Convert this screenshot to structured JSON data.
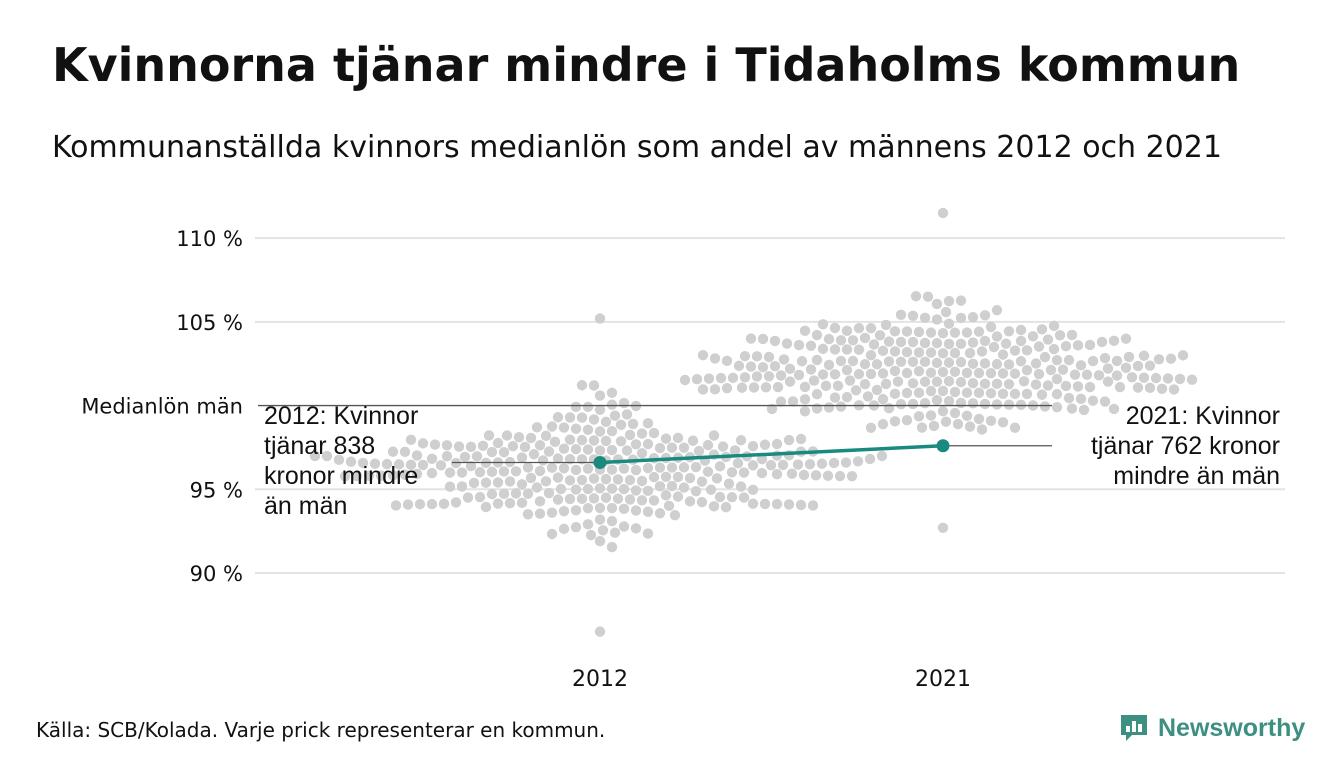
{
  "title": "Kvinnorna tjänar mindre i Tidaholms kommun",
  "subtitle": "Kommunanställda kvinnors medianlön som andel av männens 2012 och 2021",
  "source": "Källa: SCB/Kolada. Varje prick representerar en kommun.",
  "brand": "Newsworthy",
  "colors": {
    "dots": "#cfcfcf",
    "highlight": "#1a8a7e",
    "grid": "#e3e3e3",
    "reference": "#555555",
    "text": "#111111"
  },
  "chart_data": {
    "type": "scatter",
    "subtype": "beeswarm",
    "categories": [
      "2012",
      "2021"
    ],
    "ylim": [
      86,
      111.5
    ],
    "yticks": [
      90,
      95,
      105,
      110
    ],
    "ytick_labels": [
      "90 %",
      "95 %",
      "105 %",
      "110 %"
    ],
    "reference_line": {
      "value": 100,
      "label": "Medianlön män"
    },
    "distributions": [
      {
        "category": "2012",
        "min": 86.5,
        "max": 105.2,
        "center": 96.2,
        "spread": 3.3
      },
      {
        "category": "2021",
        "min": 92.7,
        "max": 111.5,
        "center": 102.0,
        "spread": 3.2
      }
    ],
    "highlight_series": {
      "points": [
        {
          "x": "2012",
          "y": 96.6
        },
        {
          "x": "2021",
          "y": 97.6
        }
      ]
    },
    "annotations": [
      {
        "category": "2012",
        "lines": [
          "2012: Kvinnor",
          "tjänar 838",
          "kronor mindre",
          "än män"
        ]
      },
      {
        "category": "2021",
        "lines": [
          "2021: Kvinnor",
          "tjänar 762 kronor",
          "mindre än män"
        ]
      }
    ],
    "legend": "none",
    "grid": true
  }
}
